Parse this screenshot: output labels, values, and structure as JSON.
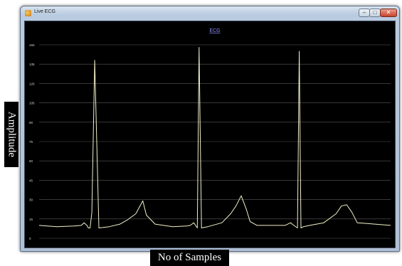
{
  "window": {
    "title": "Live ECG",
    "controls": {
      "minimize": "–",
      "maximize": "□",
      "close": "✕"
    },
    "icon": "ecg-app-icon"
  },
  "chart_data": {
    "type": "line",
    "title": "ECG",
    "xlabel": "No of Samples",
    "ylabel": "Amplitude",
    "ylim": [
      0,
      150
    ],
    "xlim": [
      0,
      1000
    ],
    "yticks": [
      0,
      15,
      30,
      45,
      60,
      75,
      90,
      105,
      120,
      135,
      150
    ],
    "grid": true,
    "line_color": "#f2f0c8",
    "background": "#000000",
    "series": [
      {
        "x": [
          0,
          50,
          100,
          120,
          128,
          136,
          140,
          145,
          150,
          158,
          170,
          200,
          230,
          250,
          275,
          295,
          305,
          330,
          380,
          420,
          430,
          440,
          445,
          450,
          455,
          462,
          480,
          520,
          545,
          560,
          575,
          590,
          600,
          620,
          660,
          700,
          715,
          725,
          735,
          740,
          745,
          752,
          770,
          810,
          845,
          860,
          875,
          890,
          905,
          1000
        ],
        "y": [
          10,
          9,
          9.5,
          10,
          12,
          10,
          8,
          8,
          20,
          138,
          8,
          9,
          11,
          14,
          19,
          29,
          18,
          11,
          9,
          9.5,
          10,
          12,
          10,
          8,
          148,
          8,
          9,
          12,
          19,
          25,
          33,
          22,
          13,
          10,
          10,
          10,
          12,
          10,
          8,
          145,
          8,
          9,
          10,
          12,
          19,
          25,
          26,
          20,
          12,
          10
        ]
      }
    ]
  }
}
